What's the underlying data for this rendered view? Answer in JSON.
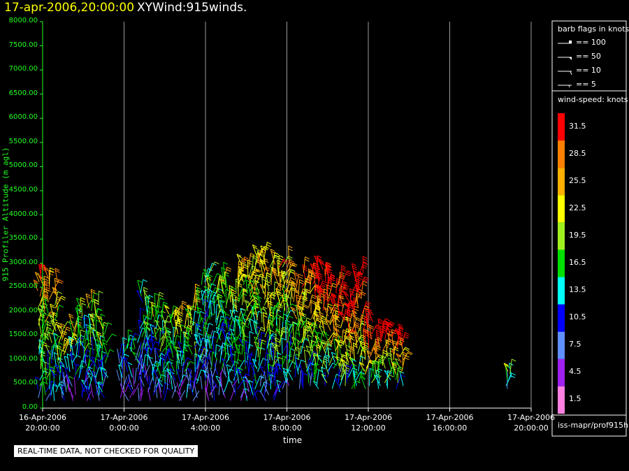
{
  "title": {
    "date": "17-apr-2006,20:00:00",
    "name": "XYWind:915winds."
  },
  "disclaimer": "REAL-TIME DATA, NOT CHECKED FOR QUALITY",
  "legend": {
    "barb_title": "barb flags in knots",
    "barbs": [
      "== 100",
      "== 50",
      "== 10",
      "== 5"
    ],
    "speed_title": "wind-speed: knots",
    "speed_levels": [
      {
        "label": "31.5",
        "color": "#ff0000"
      },
      {
        "label": "28.5",
        "color": "#ff8000"
      },
      {
        "label": "25.5",
        "color": "#ffb000"
      },
      {
        "label": "22.5",
        "color": "#ffff00"
      },
      {
        "label": "19.5",
        "color": "#a0f020"
      },
      {
        "label": "16.5",
        "color": "#00e000"
      },
      {
        "label": "13.5",
        "color": "#00ffff"
      },
      {
        "label": "10.5",
        "color": "#0000ff"
      },
      {
        "label": "7.5",
        "color": "#6090ff"
      },
      {
        "label": "4.5",
        "color": "#a020f0"
      },
      {
        "label": "1.5",
        "color": "#ff80e0"
      }
    ],
    "source": "iss-mapr/prof915h"
  },
  "chart_data": {
    "type": "scatter",
    "xlabel": "time",
    "ylabel": "915 Profiler Altitude (m agl)",
    "ylim": [
      0,
      8000
    ],
    "xlim": [
      "2006-04-16 20:00",
      "2006-04-17 20:00"
    ],
    "yticks": [
      "0.00",
      "500.00",
      "1000.00",
      "1500.00",
      "2000.00",
      "2500.00",
      "3000.00",
      "3500.00",
      "4000.00",
      "4500.00",
      "5000.00",
      "5500.00",
      "6000.00",
      "6500.00",
      "7000.00",
      "7500.00",
      "8000.00"
    ],
    "xticks": [
      {
        "date": "16-Apr-2006",
        "time": "20:00:00"
      },
      {
        "date": "17-Apr-2006",
        "time": "0:00:00"
      },
      {
        "date": "17-Apr-2006",
        "time": "4:00:00"
      },
      {
        "date": "17-Apr-2006",
        "time": "8:00:00"
      },
      {
        "date": "17-Apr-2006",
        "time": "12:00:00"
      },
      {
        "date": "17-Apr-2006",
        "time": "16:00:00"
      },
      {
        "date": "17-Apr-2006",
        "time": "20:00:00"
      }
    ],
    "grid": "vertical",
    "profiles": [
      {
        "hour": 0.0,
        "top": 2800,
        "speed": 24
      },
      {
        "hour": 0.5,
        "top": 2700,
        "speed": 22
      },
      {
        "hour": 1.0,
        "top": 1600,
        "speed": 20
      },
      {
        "hour": 1.5,
        "top": 1700,
        "speed": 18
      },
      {
        "hour": 2.0,
        "top": 2100,
        "speed": 16
      },
      {
        "hour": 2.5,
        "top": 2200,
        "speed": 18
      },
      {
        "hour": 3.0,
        "top": 1700,
        "speed": 18
      },
      {
        "hour": 4.0,
        "top": 1300,
        "speed": 11
      },
      {
        "hour": 4.5,
        "top": 1400,
        "speed": 12
      },
      {
        "hour": 5.0,
        "top": 2400,
        "speed": 14
      },
      {
        "hour": 5.5,
        "top": 2100,
        "speed": 17
      },
      {
        "hour": 6.0,
        "top": 2000,
        "speed": 18
      },
      {
        "hour": 6.5,
        "top": 1900,
        "speed": 17
      },
      {
        "hour": 7.0,
        "top": 2000,
        "speed": 18
      },
      {
        "hour": 7.5,
        "top": 2300,
        "speed": 18
      },
      {
        "hour": 8.0,
        "top": 2800,
        "speed": 16
      },
      {
        "hour": 8.5,
        "top": 2600,
        "speed": 17
      },
      {
        "hour": 9.0,
        "top": 2700,
        "speed": 17
      },
      {
        "hour": 9.5,
        "top": 2800,
        "speed": 19
      },
      {
        "hour": 10.0,
        "top": 3000,
        "speed": 20
      },
      {
        "hour": 10.5,
        "top": 3200,
        "speed": 21
      },
      {
        "hour": 11.0,
        "top": 3100,
        "speed": 22
      },
      {
        "hour": 11.5,
        "top": 3000,
        "speed": 22
      },
      {
        "hour": 12.0,
        "top": 3000,
        "speed": 21
      },
      {
        "hour": 12.5,
        "top": 2600,
        "speed": 23
      },
      {
        "hour": 13.0,
        "top": 2800,
        "speed": 25
      },
      {
        "hour": 13.5,
        "top": 2900,
        "speed": 28
      },
      {
        "hour": 14.0,
        "top": 2900,
        "speed": 30
      },
      {
        "hour": 14.5,
        "top": 2700,
        "speed": 30
      },
      {
        "hour": 15.0,
        "top": 2300,
        "speed": 30
      },
      {
        "hour": 15.5,
        "top": 2800,
        "speed": 31
      },
      {
        "hour": 16.0,
        "top": 1800,
        "speed": 31
      },
      {
        "hour": 16.5,
        "top": 1600,
        "speed": 31
      },
      {
        "hour": 17.0,
        "top": 1600,
        "speed": 30
      },
      {
        "hour": 17.5,
        "top": 1500,
        "speed": 30
      },
      {
        "hour": 23.0,
        "top": 800,
        "speed": 19
      }
    ]
  }
}
